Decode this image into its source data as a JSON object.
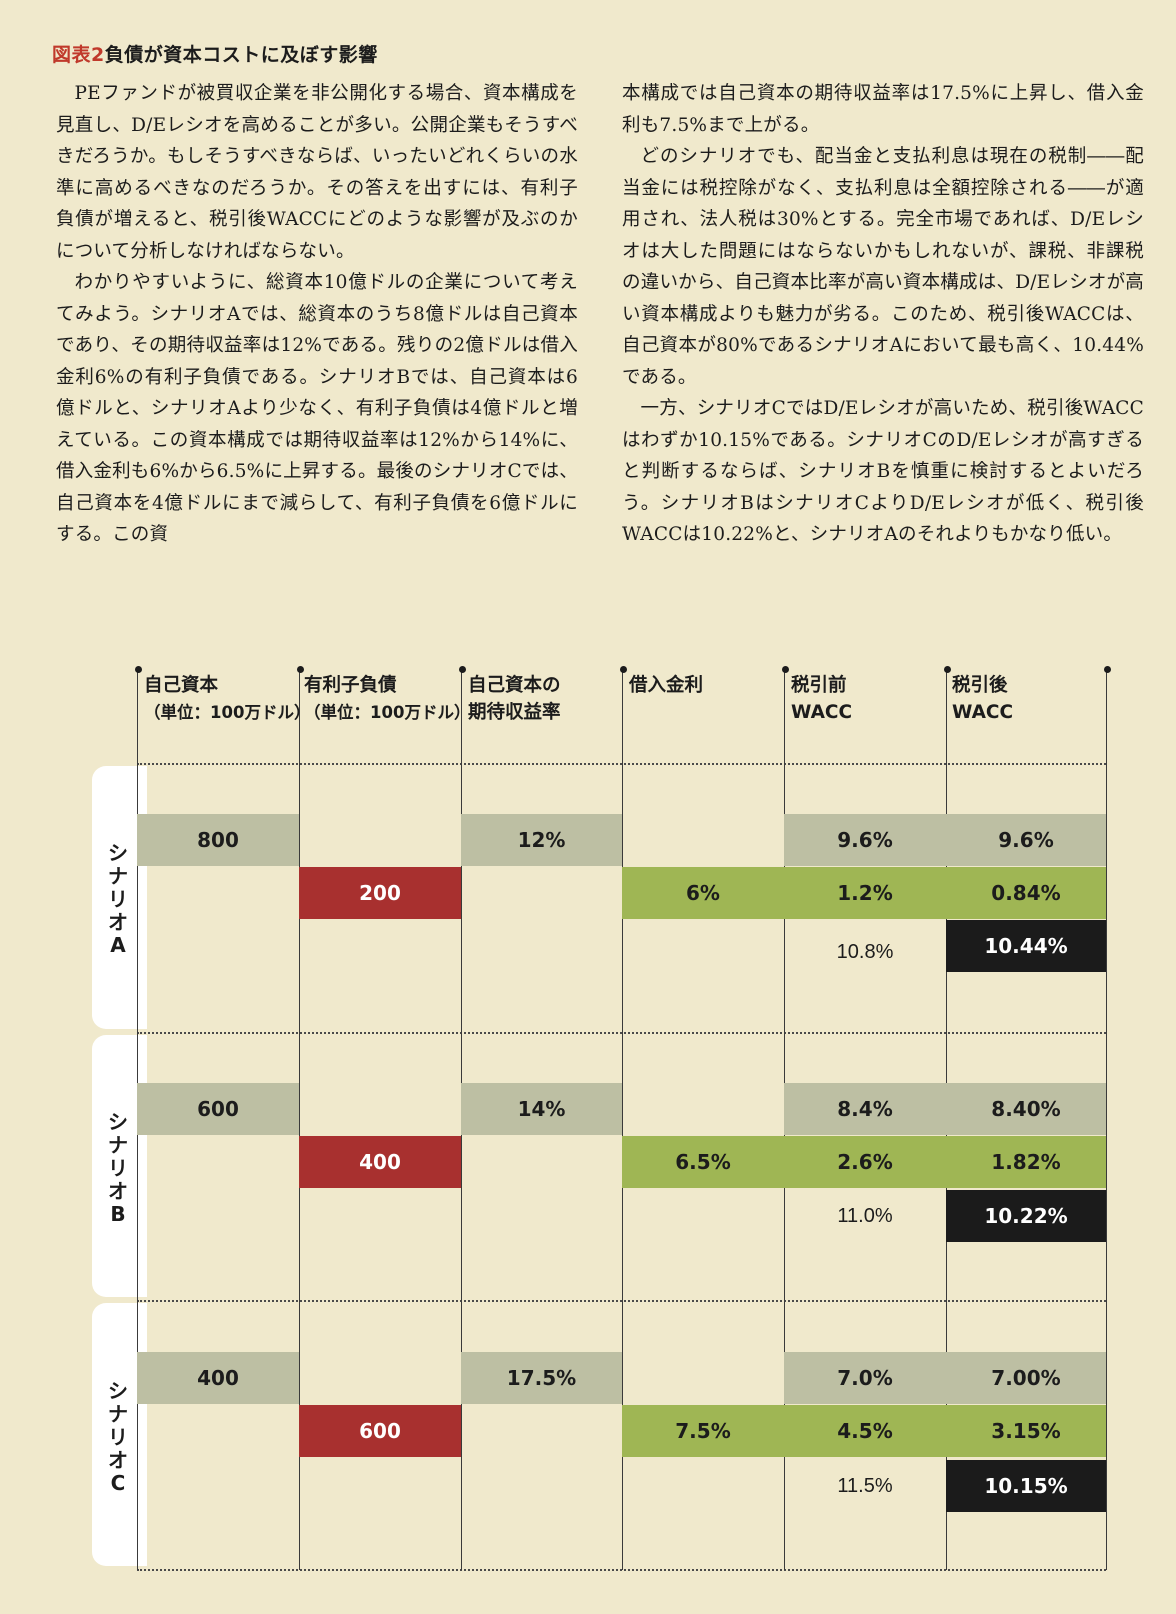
{
  "figure": {
    "label": "図表2",
    "title": "負債が資本コストに及ぼす影響"
  },
  "body": {
    "left": [
      "PEファンドが被買収企業を非公開化する場合、資本構成を見直し、D/Eレシオを高めることが多い。公開企業もそうすべきだろうか。もしそうすべきならば、いったいどれくらいの水準に高めるべきなのだろうか。その答えを出すには、有利子負債が増えると、税引後WACCにどのような影響が及ぶのかについて分析しなければならない。",
      "わかりやすいように、総資本10億ドルの企業について考えてみよう。シナリオAでは、総資本のうち8億ドルは自己資本であり、その期待収益率は12%である。残りの2億ドルは借入金利6%の有利子負債である。シナリオBでは、自己資本は6億ドルと、シナリオAより少なく、有利子負債は4億ドルと増えている。この資本構成では期待収益率は12%から14%に、借入金利も6%から6.5%に上昇する。最後のシナリオCでは、自己資本を4億ドルにまで減らして、有利子負債を6億ドルにする。この資"
    ],
    "right_cont": "本構成では自己資本の期待収益率は17.5%に上昇し、借入金利も7.5%まで上がる。",
    "right": [
      "どのシナリオでも、配当金と支払利息は現在の税制――配当金には税控除がなく、支払利息は全額控除される――が適用され、法人税は30%とする。完全市場であれば、D/Eレシオは大した問題にはならないかもしれないが、課税、非課税の違いから、自己資本比率が高い資本構成は、D/Eレシオが高い資本構成よりも魅力が劣る。このため、税引後WACCは、自己資本が80%であるシナリオAにおいて最も高く、10.44%である。",
      "一方、シナリオCではD/Eレシオが高いため、税引後WACCはわずか10.15%である。シナリオCのD/Eレシオが高すぎると判断するならば、シナリオBを慎重に検討するとよいだろう。シナリオBはシナリオCよりD/Eレシオが低く、税引後WACCは10.22%と、シナリオAのそれよりもかなり低い。"
    ]
  },
  "table": {
    "headers": {
      "equity": [
        "自己資本",
        "（単位：100万ドル）"
      ],
      "debt": [
        "有利子負債",
        "（単位：100万ドル）"
      ],
      "equity_return": [
        "自己資本の",
        "期待収益率"
      ],
      "interest": [
        "借入金利"
      ],
      "pretax": [
        "税引前",
        "WACC"
      ],
      "aftertax": [
        "税引後",
        "WACC"
      ]
    },
    "scenarios": [
      {
        "label": "シナリオA",
        "equity": "800",
        "debt": "200",
        "equity_return": "12%",
        "interest": "6%",
        "pretax_equity": "9.6%",
        "pretax_debt": "1.2%",
        "pretax_total": "10.8%",
        "aftertax_equity": "9.6%",
        "aftertax_debt": "0.84%",
        "aftertax_total": "10.44%"
      },
      {
        "label": "シナリオB",
        "equity": "600",
        "debt": "400",
        "equity_return": "14%",
        "interest": "6.5%",
        "pretax_equity": "8.4%",
        "pretax_debt": "2.6%",
        "pretax_total": "11.0%",
        "aftertax_equity": "8.40%",
        "aftertax_debt": "1.82%",
        "aftertax_total": "10.22%"
      },
      {
        "label": "シナリオC",
        "equity": "400",
        "debt": "600",
        "equity_return": "17.5%",
        "interest": "7.5%",
        "pretax_equity": "7.0%",
        "pretax_debt": "4.5%",
        "pretax_total": "11.5%",
        "aftertax_equity": "7.00%",
        "aftertax_debt": "3.15%",
        "aftertax_total": "10.15%"
      }
    ],
    "colors": {
      "gray": "#bdbfa3",
      "red": "#a8302f",
      "green": "#9fb654",
      "black": "#1b1b1b",
      "background": "#f0e9cc"
    }
  }
}
